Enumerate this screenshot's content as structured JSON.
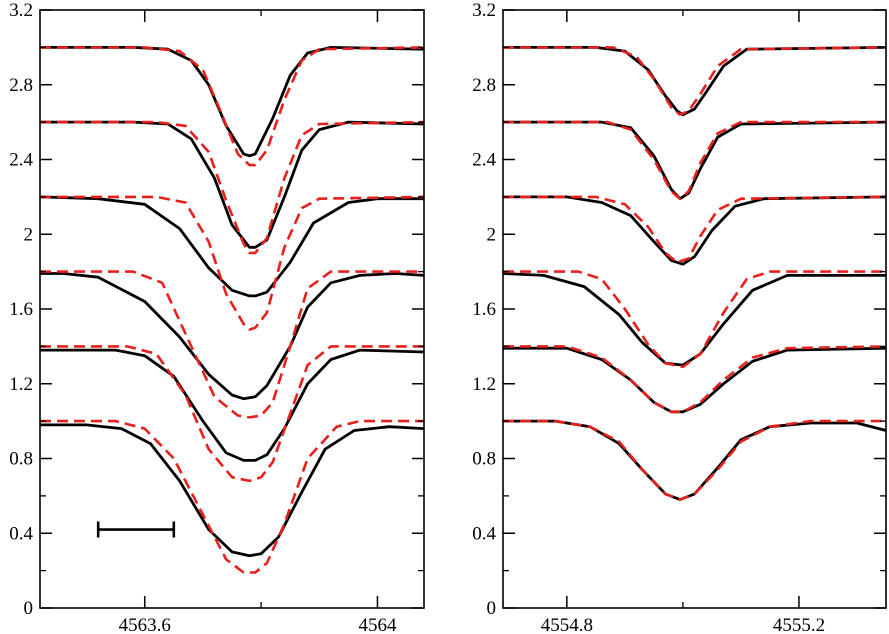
{
  "chart_data": [
    {
      "type": "line",
      "panel": "left",
      "xlim": [
        4563.42,
        4564.08
      ],
      "ylim": [
        0,
        3.2
      ],
      "xticks": [
        4563.6,
        4564
      ],
      "xtick_labels": [
        "4563.6",
        "4564"
      ],
      "yticks": [
        0,
        0.4,
        0.8,
        1.2,
        1.6,
        2,
        2.4,
        2.8,
        3.2
      ],
      "ytick_labels": [
        "0",
        "0.4",
        "0.8",
        "1.2",
        "1.6",
        "2",
        "2.4",
        "2.8",
        "3.2"
      ],
      "grid": false,
      "scale_bar": {
        "x_start": 4563.52,
        "x_end": 4563.65,
        "y": 0.42
      },
      "series": [
        {
          "style": "observed",
          "color": "#000000",
          "dash": "solid",
          "x": [
            4563.42,
            4563.58,
            4563.64,
            4563.68,
            4563.71,
            4563.74,
            4563.77,
            4563.78,
            4563.79,
            4563.82,
            4563.85,
            4563.88,
            4563.92,
            4564.08
          ],
          "y": [
            3.0,
            3.0,
            2.99,
            2.93,
            2.8,
            2.58,
            2.43,
            2.42,
            2.43,
            2.62,
            2.85,
            2.97,
            3.0,
            2.99
          ]
        },
        {
          "style": "model",
          "color": "#e8201c",
          "dash": "dashed",
          "x": [
            4563.42,
            4563.6,
            4563.66,
            4563.7,
            4563.73,
            4563.76,
            4563.78,
            4563.79,
            4563.81,
            4563.84,
            4563.87,
            4563.9,
            4564.08
          ],
          "y": [
            3.0,
            3.0,
            2.98,
            2.88,
            2.66,
            2.43,
            2.37,
            2.37,
            2.45,
            2.72,
            2.93,
            2.99,
            3.0
          ]
        },
        {
          "style": "observed",
          "color": "#000000",
          "dash": "solid",
          "x": [
            4563.42,
            4563.58,
            4563.64,
            4563.68,
            4563.72,
            4563.75,
            4563.78,
            4563.79,
            4563.81,
            4563.84,
            4563.87,
            4563.9,
            4563.95,
            4564.08
          ],
          "y": [
            2.6,
            2.6,
            2.59,
            2.51,
            2.3,
            2.05,
            1.93,
            1.93,
            1.97,
            2.2,
            2.45,
            2.56,
            2.6,
            2.59
          ]
        },
        {
          "style": "model",
          "color": "#e8201c",
          "dash": "dashed",
          "x": [
            4563.42,
            4563.62,
            4563.67,
            4563.71,
            4563.74,
            4563.77,
            4563.78,
            4563.79,
            4563.81,
            4563.84,
            4563.87,
            4563.9,
            4564.08
          ],
          "y": [
            2.6,
            2.6,
            2.58,
            2.44,
            2.18,
            1.95,
            1.9,
            1.9,
            1.98,
            2.3,
            2.53,
            2.59,
            2.6
          ]
        },
        {
          "style": "observed",
          "color": "#000000",
          "dash": "solid",
          "x": [
            4563.42,
            4563.52,
            4563.6,
            4563.66,
            4563.71,
            4563.75,
            4563.78,
            4563.79,
            4563.81,
            4563.85,
            4563.89,
            4563.95,
            4564.0,
            4564.08
          ],
          "y": [
            2.2,
            2.19,
            2.16,
            2.03,
            1.82,
            1.7,
            1.67,
            1.67,
            1.69,
            1.85,
            2.06,
            2.17,
            2.19,
            2.19
          ]
        },
        {
          "style": "model",
          "color": "#e8201c",
          "dash": "dashed",
          "x": [
            4563.42,
            4563.62,
            4563.67,
            4563.71,
            4563.74,
            4563.77,
            4563.78,
            4563.79,
            4563.81,
            4563.84,
            4563.87,
            4563.9,
            4564.08
          ],
          "y": [
            2.2,
            2.2,
            2.17,
            1.96,
            1.68,
            1.52,
            1.49,
            1.5,
            1.58,
            1.93,
            2.14,
            2.19,
            2.2
          ]
        },
        {
          "style": "observed",
          "color": "#000000",
          "dash": "solid",
          "x": [
            4563.42,
            4563.46,
            4563.52,
            4563.6,
            4563.66,
            4563.71,
            4563.75,
            4563.77,
            4563.79,
            4563.81,
            4563.85,
            4563.88,
            4563.92,
            4563.97,
            4564.03,
            4564.08
          ],
          "y": [
            1.79,
            1.79,
            1.77,
            1.64,
            1.45,
            1.25,
            1.14,
            1.12,
            1.13,
            1.19,
            1.4,
            1.61,
            1.74,
            1.78,
            1.79,
            1.78
          ]
        },
        {
          "style": "model",
          "color": "#e8201c",
          "dash": "dashed",
          "x": [
            4563.42,
            4563.58,
            4563.63,
            4563.68,
            4563.72,
            4563.76,
            4563.78,
            4563.8,
            4563.82,
            4563.85,
            4563.88,
            4563.92,
            4564.08
          ],
          "y": [
            1.8,
            1.8,
            1.74,
            1.4,
            1.13,
            1.03,
            1.02,
            1.03,
            1.1,
            1.4,
            1.71,
            1.8,
            1.8
          ]
        },
        {
          "style": "observed",
          "color": "#000000",
          "dash": "solid",
          "x": [
            4563.42,
            4563.55,
            4563.6,
            4563.65,
            4563.7,
            4563.74,
            4563.77,
            4563.79,
            4563.81,
            4563.84,
            4563.88,
            4563.92,
            4563.97,
            4564.08
          ],
          "y": [
            1.38,
            1.38,
            1.35,
            1.24,
            1.0,
            0.83,
            0.79,
            0.79,
            0.82,
            0.96,
            1.2,
            1.33,
            1.38,
            1.37
          ]
        },
        {
          "style": "model",
          "color": "#e8201c",
          "dash": "dashed",
          "x": [
            4563.42,
            4563.57,
            4563.62,
            4563.67,
            4563.71,
            4563.75,
            4563.78,
            4563.8,
            4563.82,
            4563.85,
            4563.88,
            4563.92,
            4564.08
          ],
          "y": [
            1.4,
            1.4,
            1.36,
            1.14,
            0.85,
            0.7,
            0.68,
            0.7,
            0.78,
            1.04,
            1.3,
            1.4,
            1.4
          ]
        },
        {
          "style": "observed",
          "color": "#000000",
          "dash": "solid",
          "x": [
            4563.42,
            4563.5,
            4563.56,
            4563.61,
            4563.66,
            4563.71,
            4563.75,
            4563.78,
            4563.8,
            4563.83,
            4563.87,
            4563.91,
            4563.96,
            4564.02,
            4564.08
          ],
          "y": [
            0.98,
            0.98,
            0.96,
            0.88,
            0.68,
            0.42,
            0.3,
            0.28,
            0.29,
            0.38,
            0.62,
            0.85,
            0.95,
            0.97,
            0.96
          ]
        },
        {
          "style": "model",
          "color": "#e8201c",
          "dash": "dashed",
          "x": [
            4563.42,
            4563.55,
            4563.6,
            4563.65,
            4563.7,
            4563.74,
            4563.77,
            4563.79,
            4563.81,
            4563.84,
            4563.88,
            4563.93,
            4563.97,
            4564.08
          ],
          "y": [
            1.0,
            1.0,
            0.96,
            0.8,
            0.5,
            0.26,
            0.19,
            0.19,
            0.24,
            0.45,
            0.8,
            0.97,
            1.0,
            1.0
          ]
        }
      ]
    },
    {
      "type": "line",
      "panel": "right",
      "xlim": [
        4554.69,
        4555.35
      ],
      "ylim": [
        0,
        3.2
      ],
      "xticks": [
        4554.8,
        4555.2
      ],
      "xtick_labels": [
        "4554.8",
        "4555.2"
      ],
      "yticks": [
        0,
        0.4,
        0.8,
        1.2,
        1.6,
        2,
        2.4,
        2.8,
        3.2
      ],
      "ytick_labels": [
        "0",
        "0.4",
        "0.8",
        "1.2",
        "1.6",
        "2",
        "2.4",
        "2.8",
        "3.2"
      ],
      "grid": false,
      "series": [
        {
          "style": "observed",
          "color": "#000000",
          "dash": "solid",
          "x": [
            4554.69,
            4554.85,
            4554.9,
            4554.94,
            4554.97,
            4554.99,
            4555.0,
            4555.02,
            4555.04,
            4555.07,
            4555.11,
            4555.35
          ],
          "y": [
            3.0,
            3.0,
            2.98,
            2.88,
            2.74,
            2.66,
            2.64,
            2.67,
            2.76,
            2.9,
            2.99,
            3.0
          ]
        },
        {
          "style": "model",
          "color": "#e8201c",
          "dash": "dashed",
          "x": [
            4554.69,
            4554.88,
            4554.92,
            4554.95,
            4554.98,
            4554.995,
            4555.01,
            4555.03,
            4555.06,
            4555.1,
            4555.35
          ],
          "y": [
            3.0,
            3.0,
            2.95,
            2.83,
            2.68,
            2.64,
            2.66,
            2.75,
            2.9,
            2.99,
            3.0
          ]
        },
        {
          "style": "observed",
          "color": "#000000",
          "dash": "solid",
          "x": [
            4554.69,
            4554.86,
            4554.91,
            4554.95,
            4554.98,
            4554.995,
            4555.01,
            4555.03,
            4555.06,
            4555.1,
            4555.35
          ],
          "y": [
            2.6,
            2.6,
            2.57,
            2.42,
            2.24,
            2.19,
            2.22,
            2.35,
            2.52,
            2.59,
            2.6
          ]
        },
        {
          "style": "model",
          "color": "#e8201c",
          "dash": "dashed",
          "x": [
            4554.69,
            4554.87,
            4554.91,
            4554.95,
            4554.98,
            4554.995,
            4555.01,
            4555.03,
            4555.06,
            4555.1,
            4555.35
          ],
          "y": [
            2.6,
            2.6,
            2.56,
            2.4,
            2.23,
            2.19,
            2.23,
            2.38,
            2.54,
            2.6,
            2.6
          ]
        },
        {
          "style": "observed",
          "color": "#000000",
          "dash": "solid",
          "x": [
            4554.69,
            4554.8,
            4554.86,
            4554.91,
            4554.95,
            4554.98,
            4555.0,
            4555.02,
            4555.05,
            4555.09,
            4555.14,
            4555.35
          ],
          "y": [
            2.2,
            2.2,
            2.17,
            2.1,
            1.96,
            1.86,
            1.84,
            1.88,
            2.02,
            2.15,
            2.19,
            2.2
          ]
        },
        {
          "style": "model",
          "color": "#e8201c",
          "dash": "dashed",
          "x": [
            4554.69,
            4554.85,
            4554.9,
            4554.94,
            4554.97,
            4554.99,
            4555.01,
            4555.03,
            4555.06,
            4555.1,
            4555.35
          ],
          "y": [
            2.2,
            2.2,
            2.16,
            2.04,
            1.9,
            1.85,
            1.87,
            1.99,
            2.13,
            2.19,
            2.2
          ]
        },
        {
          "style": "observed",
          "color": "#000000",
          "dash": "solid",
          "x": [
            4554.69,
            4554.76,
            4554.83,
            4554.89,
            4554.93,
            4554.97,
            4555.0,
            4555.03,
            4555.07,
            4555.12,
            4555.18,
            4555.35
          ],
          "y": [
            1.79,
            1.78,
            1.72,
            1.57,
            1.42,
            1.31,
            1.3,
            1.36,
            1.52,
            1.7,
            1.78,
            1.78
          ]
        },
        {
          "style": "model",
          "color": "#e8201c",
          "dash": "dashed",
          "x": [
            4554.69,
            4554.82,
            4554.86,
            4554.9,
            4554.94,
            4554.97,
            4555.0,
            4555.03,
            4555.07,
            4555.11,
            4555.15,
            4555.35
          ],
          "y": [
            1.8,
            1.8,
            1.76,
            1.6,
            1.41,
            1.31,
            1.29,
            1.36,
            1.58,
            1.76,
            1.8,
            1.8
          ]
        },
        {
          "style": "observed",
          "color": "#000000",
          "dash": "solid",
          "x": [
            4554.69,
            4554.8,
            4554.86,
            4554.91,
            4554.95,
            4554.98,
            4555.0,
            4555.03,
            4555.07,
            4555.12,
            4555.18,
            4555.35
          ],
          "y": [
            1.39,
            1.39,
            1.33,
            1.22,
            1.1,
            1.05,
            1.05,
            1.09,
            1.2,
            1.32,
            1.38,
            1.39
          ]
        },
        {
          "style": "model",
          "color": "#e8201c",
          "dash": "dashed",
          "x": [
            4554.69,
            4554.8,
            4554.86,
            4554.91,
            4554.95,
            4554.98,
            4555.0,
            4555.03,
            4555.07,
            4555.12,
            4555.18,
            4555.35
          ],
          "y": [
            1.4,
            1.4,
            1.34,
            1.22,
            1.1,
            1.05,
            1.05,
            1.1,
            1.22,
            1.34,
            1.39,
            1.4
          ]
        },
        {
          "style": "observed",
          "color": "#000000",
          "dash": "solid",
          "x": [
            4554.69,
            4554.78,
            4554.84,
            4554.89,
            4554.93,
            4554.97,
            4554.995,
            4555.02,
            4555.06,
            4555.1,
            4555.15,
            4555.22,
            4555.3,
            4555.35
          ],
          "y": [
            1.0,
            1.0,
            0.97,
            0.88,
            0.74,
            0.61,
            0.58,
            0.61,
            0.75,
            0.9,
            0.97,
            0.99,
            0.99,
            0.95
          ]
        },
        {
          "style": "model",
          "color": "#e8201c",
          "dash": "dashed",
          "x": [
            4554.69,
            4554.78,
            4554.84,
            4554.89,
            4554.93,
            4554.97,
            4554.995,
            4555.02,
            4555.06,
            4555.1,
            4555.15,
            4555.22,
            4555.35
          ],
          "y": [
            1.0,
            1.0,
            0.97,
            0.89,
            0.74,
            0.61,
            0.58,
            0.61,
            0.74,
            0.89,
            0.97,
            1.0,
            1.0
          ]
        }
      ]
    }
  ]
}
